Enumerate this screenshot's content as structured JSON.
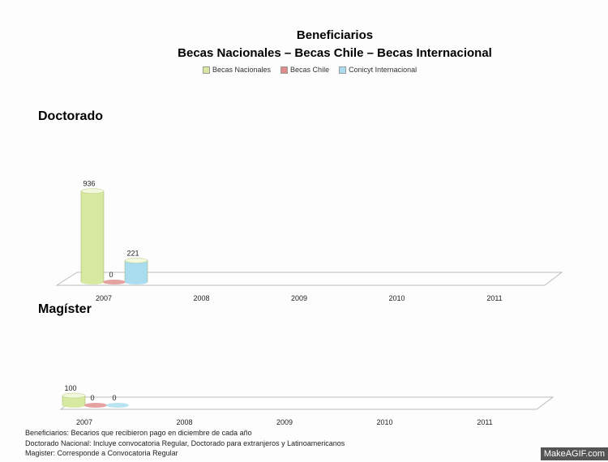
{
  "title": "Beneficiarios",
  "subtitle": "Becas Nacionales – Becas Chile – Becas Internacional",
  "legend": [
    {
      "label": "Becas Nacionales",
      "color": "#d7e8a0"
    },
    {
      "label": "Becas Chile",
      "color": "#e08a8a"
    },
    {
      "label": "Conicyt Internacional",
      "color": "#a9dcef"
    }
  ],
  "sections": {
    "doctorado": "Doctorado",
    "magister": "Magíster"
  },
  "notes": [
    "Beneficiarios: Becarios que recibieron pago en diciembre de cada año",
    "Doctorado Nacional: Incluye convocatoria Regular, Doctorado para extranjeros y Latinoamericanos",
    "Magister: Corresponde a Convocatoria Regular"
  ],
  "watermark": "MakeAGIF.com",
  "chart_data": [
    {
      "type": "bar",
      "title": "Doctorado",
      "categories": [
        "2007",
        "2008",
        "2009",
        "2010",
        "2011"
      ],
      "series": [
        {
          "name": "Becas Nacionales",
          "values": [
            936,
            null,
            null,
            null,
            null
          ]
        },
        {
          "name": "Becas Chile",
          "values": [
            0,
            null,
            null,
            null,
            null
          ]
        },
        {
          "name": "Conicyt Internacional",
          "values": [
            221,
            null,
            null,
            null,
            null
          ]
        }
      ]
    },
    {
      "type": "bar",
      "title": "Magíster",
      "categories": [
        "2007",
        "2008",
        "2009",
        "2010",
        "2011"
      ],
      "series": [
        {
          "name": "Becas Nacionales",
          "values": [
            100,
            null,
            null,
            null,
            null
          ]
        },
        {
          "name": "Becas Chile",
          "values": [
            0,
            null,
            null,
            null,
            null
          ]
        },
        {
          "name": "Conicyt Internacional",
          "values": [
            0,
            null,
            null,
            null,
            null
          ]
        }
      ]
    }
  ]
}
